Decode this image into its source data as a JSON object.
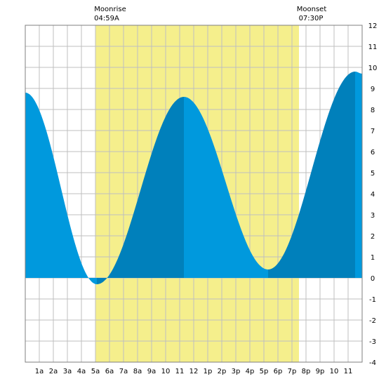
{
  "moonrise": {
    "label": "Moonrise",
    "time": "04:59A"
  },
  "moonset": {
    "label": "Moonset",
    "time": "07:30P"
  },
  "chart_data": {
    "type": "area",
    "x_unit": "hour",
    "xlim": [
      0,
      24
    ],
    "ylim": [
      -4,
      12
    ],
    "y_ticks": [
      -4,
      -3,
      -2,
      -1,
      0,
      1,
      2,
      3,
      4,
      5,
      6,
      7,
      8,
      9,
      10,
      11,
      12
    ],
    "x_tick_labels": [
      {
        "hour": 1,
        "label": "1a"
      },
      {
        "hour": 2,
        "label": "2a"
      },
      {
        "hour": 3,
        "label": "3a"
      },
      {
        "hour": 4,
        "label": "4a"
      },
      {
        "hour": 5,
        "label": "5a"
      },
      {
        "hour": 6,
        "label": "6a"
      },
      {
        "hour": 7,
        "label": "7a"
      },
      {
        "hour": 8,
        "label": "8a"
      },
      {
        "hour": 9,
        "label": "9a"
      },
      {
        "hour": 10,
        "label": "10"
      },
      {
        "hour": 11,
        "label": "11"
      },
      {
        "hour": 12,
        "label": "12"
      },
      {
        "hour": 13,
        "label": "1p"
      },
      {
        "hour": 14,
        "label": "2p"
      },
      {
        "hour": 15,
        "label": "3p"
      },
      {
        "hour": 16,
        "label": "4p"
      },
      {
        "hour": 17,
        "label": "5p"
      },
      {
        "hour": 18,
        "label": "6p"
      },
      {
        "hour": 19,
        "label": "7p"
      },
      {
        "hour": 20,
        "label": "8p"
      },
      {
        "hour": 21,
        "label": "9p"
      },
      {
        "hour": 22,
        "label": "10"
      },
      {
        "hour": 23,
        "label": "11"
      }
    ],
    "grid": true,
    "moon_up_period": {
      "start": 4.983,
      "end": 19.5
    },
    "tide_extremes": [
      {
        "hour": 0,
        "height": 8.8
      },
      {
        "hour": 5.1,
        "height": -0.3
      },
      {
        "hour": 11.3,
        "height": 8.6
      },
      {
        "hour": 17.3,
        "height": 0.4
      },
      {
        "hour": 23.5,
        "height": 9.8
      },
      {
        "hour": 24,
        "height": 9.7
      }
    ],
    "band_boundaries": [
      5.1,
      11.3,
      17.3,
      23.5
    ],
    "colors": {
      "moon_up_fill": "#f5ef8c",
      "tide_light": "#0099dd",
      "tide_dark": "#0080bb",
      "grid": "#bfbfbf",
      "border": "#7f7f7f",
      "background": "#ffffff"
    }
  }
}
